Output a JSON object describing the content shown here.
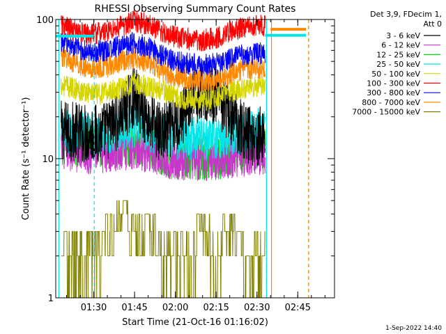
{
  "chart_data": {
    "type": "line",
    "title": "RHESSI Observing Summary Count Rates",
    "xlabel": "Start Time (21-Oct-16 01:16:02)",
    "ylabel": "Count Rate (s⁻¹ detector⁻¹)",
    "y_scale": "log",
    "ylim": [
      1,
      100
    ],
    "xlim": [
      "01:16:02",
      "02:58:30"
    ],
    "x_ticks": [
      "01:30",
      "01:45",
      "02:00",
      "02:15",
      "02:30",
      "02:45"
    ],
    "y_ticks": [
      "1",
      "10",
      "100"
    ],
    "grid": false,
    "legend_position": "top-right",
    "legend_header": [
      "Det 3,9, FDecim 1,",
      "Att 0"
    ],
    "timestamp": "1-Sep-2022 14:40",
    "data_end": "02:33:30",
    "series": [
      {
        "name": "3 - 6 keV",
        "color": "#000000",
        "x": [
          "01:18",
          "01:30",
          "01:35",
          "01:40",
          "01:45",
          "01:50",
          "01:55",
          "02:00",
          "02:05",
          "02:10",
          "02:15",
          "02:20",
          "02:25",
          "02:30",
          "02:33"
        ],
        "values": [
          16,
          15,
          16,
          20,
          28,
          19,
          15,
          17,
          24,
          32,
          28,
          21,
          16,
          14,
          15
        ]
      },
      {
        "name": "6 - 12 keV",
        "color": "#cc33cc",
        "x": [
          "01:18",
          "01:30",
          "01:45",
          "02:00",
          "02:15",
          "02:30",
          "02:33"
        ],
        "values": [
          12,
          11,
          12,
          10,
          10,
          11,
          11
        ]
      },
      {
        "name": "12 - 25 keV",
        "color": "#00dd00",
        "x": [
          "01:18",
          "01:30",
          "01:45",
          "02:00",
          "02:15",
          "02:30",
          "02:33"
        ],
        "values": [
          13,
          12,
          13,
          10,
          10,
          12,
          12
        ]
      },
      {
        "name": "25 - 50 keV",
        "color": "#00e5e5",
        "x": [
          "01:18",
          "01:30",
          "01:45",
          "02:00",
          "02:15",
          "02:30",
          "02:33"
        ],
        "values": [
          16,
          15,
          17,
          14,
          14,
          16,
          17
        ]
      },
      {
        "name": "50 - 100 keV",
        "color": "#d4d400",
        "x": [
          "01:18",
          "01:25",
          "01:32",
          "01:40",
          "01:45",
          "01:50",
          "01:57",
          "02:02",
          "02:10",
          "02:15",
          "02:22",
          "02:30",
          "02:33"
        ],
        "values": [
          34,
          31,
          29,
          32,
          35,
          33,
          30,
          27,
          26,
          28,
          31,
          33,
          33
        ]
      },
      {
        "name": "100 - 300 keV",
        "color": "#ff0000",
        "x": [
          "01:18",
          "01:22",
          "01:28",
          "01:35",
          "01:40",
          "01:45",
          "01:50",
          "01:55",
          "02:00",
          "02:05",
          "02:10",
          "02:15",
          "02:20",
          "02:25",
          "02:30",
          "02:33"
        ],
        "values": [
          90,
          85,
          78,
          82,
          90,
          97,
          92,
          82,
          75,
          72,
          71,
          74,
          82,
          88,
          90,
          90
        ]
      },
      {
        "name": "300 - 800 keV",
        "color": "#0000ff",
        "x": [
          "01:18",
          "01:22",
          "01:28",
          "01:35",
          "01:40",
          "01:45",
          "01:50",
          "01:55",
          "02:00",
          "02:05",
          "02:10",
          "02:15",
          "02:20",
          "02:25",
          "02:30",
          "02:33"
        ],
        "values": [
          70,
          65,
          58,
          60,
          65,
          68,
          63,
          55,
          50,
          48,
          47,
          48,
          52,
          56,
          57,
          57
        ]
      },
      {
        "name": "800 - 7000 keV",
        "color": "#ff8800",
        "x": [
          "01:18",
          "01:22",
          "01:28",
          "01:35",
          "01:40",
          "01:45",
          "01:50",
          "01:55",
          "02:00",
          "02:05",
          "02:10",
          "02:15",
          "02:20",
          "02:25",
          "02:30",
          "02:33"
        ],
        "values": [
          55,
          50,
          44,
          46,
          50,
          53,
          49,
          43,
          39,
          37,
          36,
          37,
          40,
          44,
          45,
          45
        ]
      },
      {
        "name": "7000 - 15000 keV",
        "color": "#808000",
        "x": [
          "01:18",
          "01:25",
          "01:30",
          "01:35",
          "01:40",
          "01:45",
          "01:50",
          "01:55",
          "02:00",
          "02:05",
          "02:10",
          "02:15",
          "02:20",
          "02:25",
          "02:30",
          "02:33"
        ],
        "values": [
          2,
          2,
          2,
          3,
          4,
          3,
          3,
          2,
          2,
          2,
          3,
          2,
          3,
          2,
          2,
          3
        ]
      }
    ],
    "overlay_bars": [
      {
        "color": "#00e5e5",
        "x_start": "01:16:02",
        "x_end": "01:30",
        "value": 76
      },
      {
        "color": "#ff8800",
        "x_start": "02:35",
        "x_end": "02:48",
        "value": 85
      },
      {
        "color": "#00e5e5",
        "x_start": "02:33",
        "x_end": "02:48",
        "value": 77
      }
    ],
    "marker_lines": [
      {
        "color": "#00e5e5",
        "x": "01:17:10",
        "style": "solid"
      },
      {
        "color": "#00e5e5",
        "x": "01:30:10",
        "style": "dashed"
      },
      {
        "color": "#00e5e5",
        "x": "02:33:30",
        "style": "dashed"
      },
      {
        "color": "#00e5e5",
        "x": "02:33:30",
        "style": "solid"
      },
      {
        "color": "#ff8800",
        "x": "02:35:20",
        "style": "solid"
      },
      {
        "color": "#00e5e5",
        "x": "02:49:00",
        "style": "dashed"
      },
      {
        "color": "#ff8800",
        "x": "02:49:00",
        "style": "dashed"
      }
    ]
  }
}
